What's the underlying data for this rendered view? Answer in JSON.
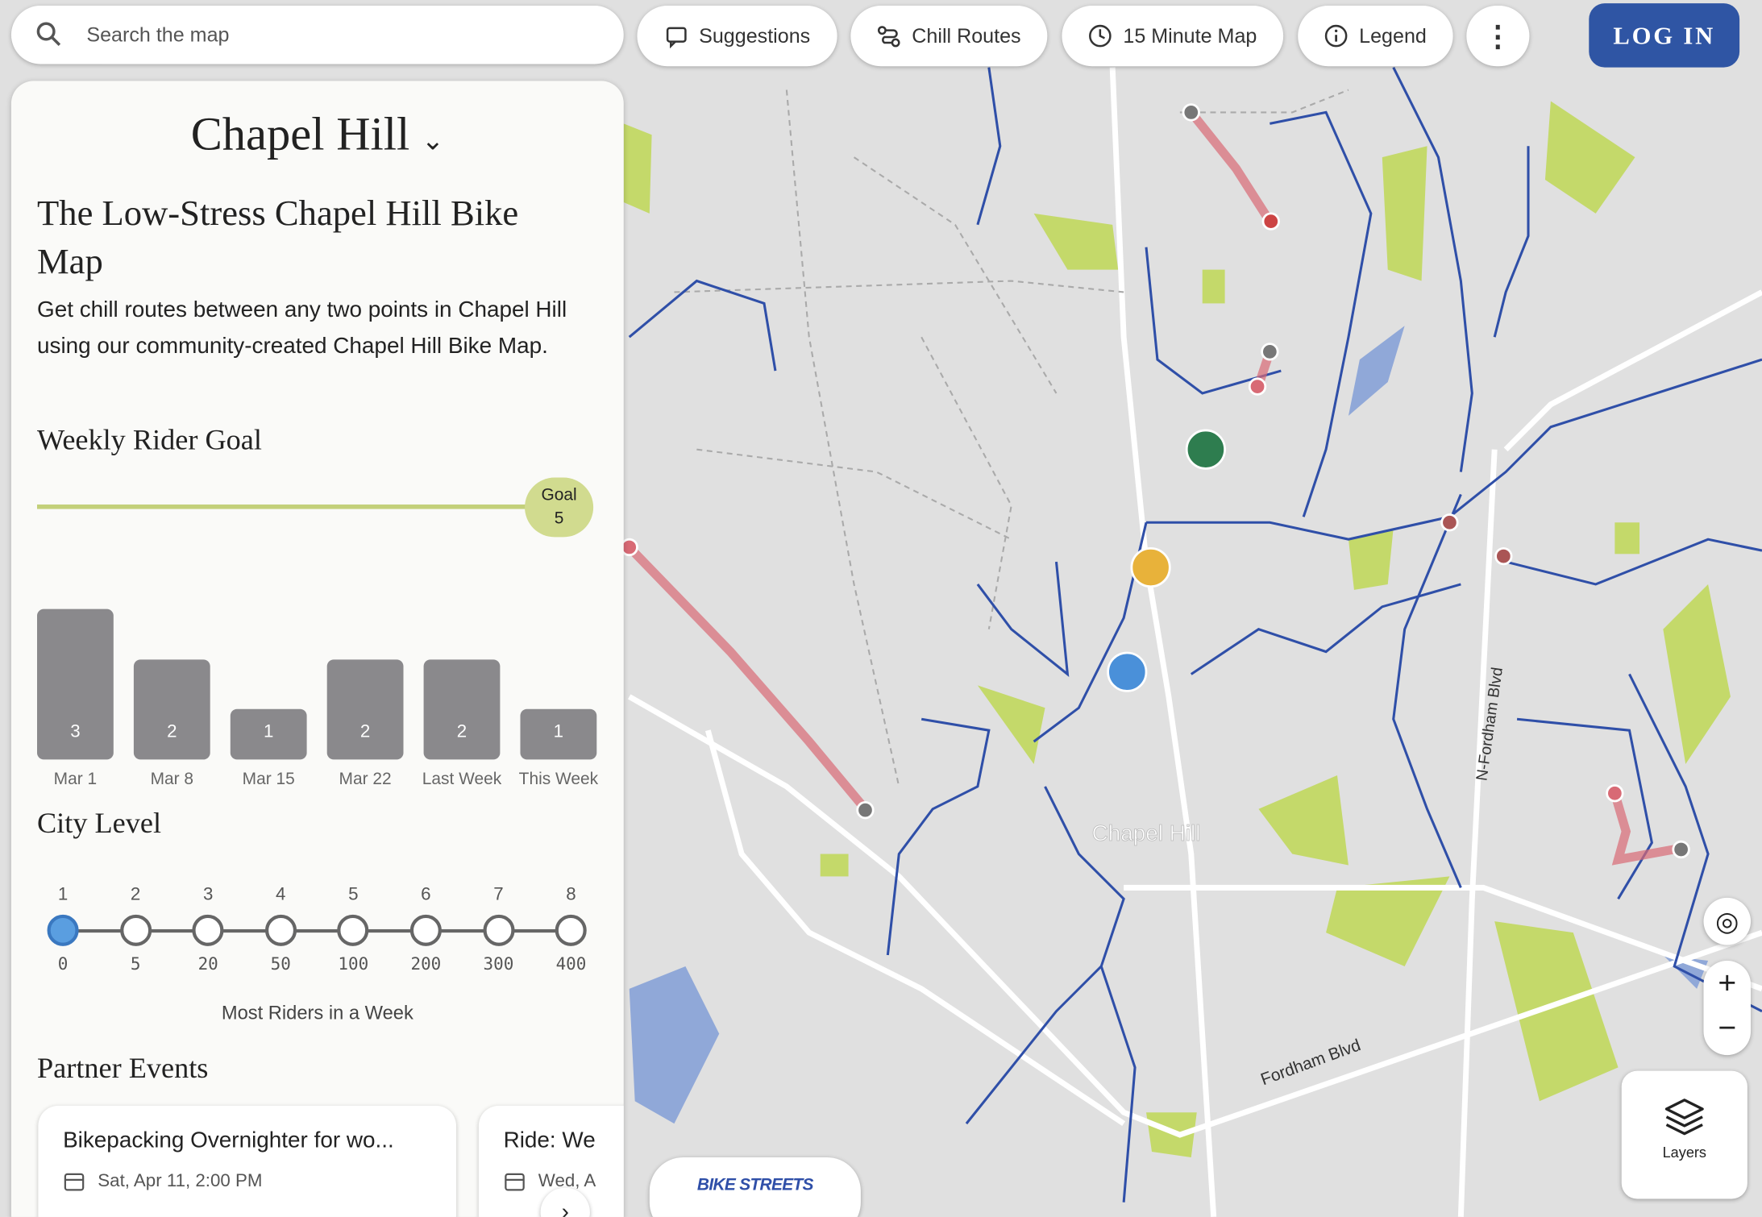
{
  "search": {
    "placeholder": "Search the map"
  },
  "toolbar": {
    "buttons": [
      "Suggestions",
      "Chill Routes",
      "15 Minute Map",
      "Legend"
    ],
    "login": "LOG IN"
  },
  "panel": {
    "city": "Chapel Hill",
    "title": "The Low-Stress Chapel Hill Bike Map",
    "description": "Get chill routes between any two points in Chapel Hill using our community-created Chapel Hill Bike Map.",
    "goal": {
      "heading": "Weekly Rider Goal",
      "label": "Goal",
      "value": 5
    },
    "weekly": {
      "categories": [
        "Mar 1",
        "Mar 8",
        "Mar 15",
        "Mar 22",
        "Last Week",
        "This Week"
      ],
      "values": [
        3,
        2,
        1,
        2,
        2,
        1
      ]
    },
    "city_level": {
      "heading": "City Level",
      "levels": [
        1,
        2,
        3,
        4,
        5,
        6,
        7,
        8
      ],
      "thresholds": [
        0,
        5,
        20,
        50,
        100,
        200,
        300,
        400
      ],
      "current": 1,
      "caption": "Most Riders in a Week"
    },
    "events": {
      "heading": "Partner Events",
      "items": [
        {
          "title": "Bikepacking Overnighter for wo...",
          "date": "Sat, Apr 11, 2:00 PM"
        },
        {
          "title": "Ride: We",
          "date": "Wed, A"
        }
      ]
    }
  },
  "map": {
    "place": "Chapel Hill",
    "roads": [
      "Fordham Blvd",
      "N-Fordham Blvd"
    ],
    "layers": "Layers",
    "logo": "BIKE STREETS"
  }
}
